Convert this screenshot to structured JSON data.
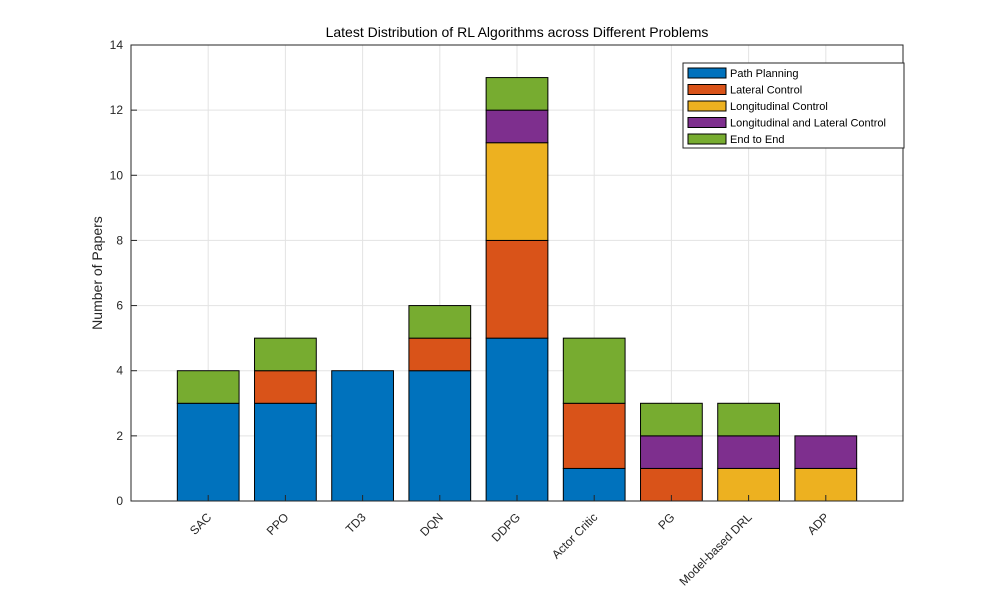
{
  "chart_data": {
    "type": "bar",
    "stacked": true,
    "title": "Latest Distribution of RL Algorithms across Different Problems",
    "xlabel": "",
    "ylabel": "Number of Papers",
    "ylim": [
      0,
      14
    ],
    "yticks": [
      "0",
      "2",
      "4",
      "6",
      "8",
      "10",
      "12",
      "14"
    ],
    "grid": true,
    "legend_position": "top-right",
    "categories": [
      "SAC",
      "PPO",
      "TD3",
      "DQN",
      "DDPG",
      "Actor Critic",
      "PG",
      "Model-based DRL",
      "ADP"
    ],
    "series": [
      {
        "name": "Path Planning",
        "color": "#0072BD",
        "values": [
          3,
          3,
          4,
          4,
          5,
          1,
          0,
          0,
          0
        ]
      },
      {
        "name": "Lateral Control",
        "color": "#D95319",
        "values": [
          0,
          1,
          0,
          1,
          3,
          2,
          1,
          0,
          0
        ]
      },
      {
        "name": "Longitudinal Control",
        "color": "#EDB120",
        "values": [
          0,
          0,
          0,
          0,
          3,
          0,
          0,
          1,
          1
        ]
      },
      {
        "name": "Longitudinal and Lateral Control",
        "color": "#7E2F8E",
        "values": [
          0,
          0,
          0,
          0,
          1,
          0,
          1,
          1,
          1
        ]
      },
      {
        "name": "End to End",
        "color": "#77AC30",
        "values": [
          1,
          1,
          0,
          1,
          1,
          2,
          1,
          1,
          0
        ]
      }
    ]
  }
}
